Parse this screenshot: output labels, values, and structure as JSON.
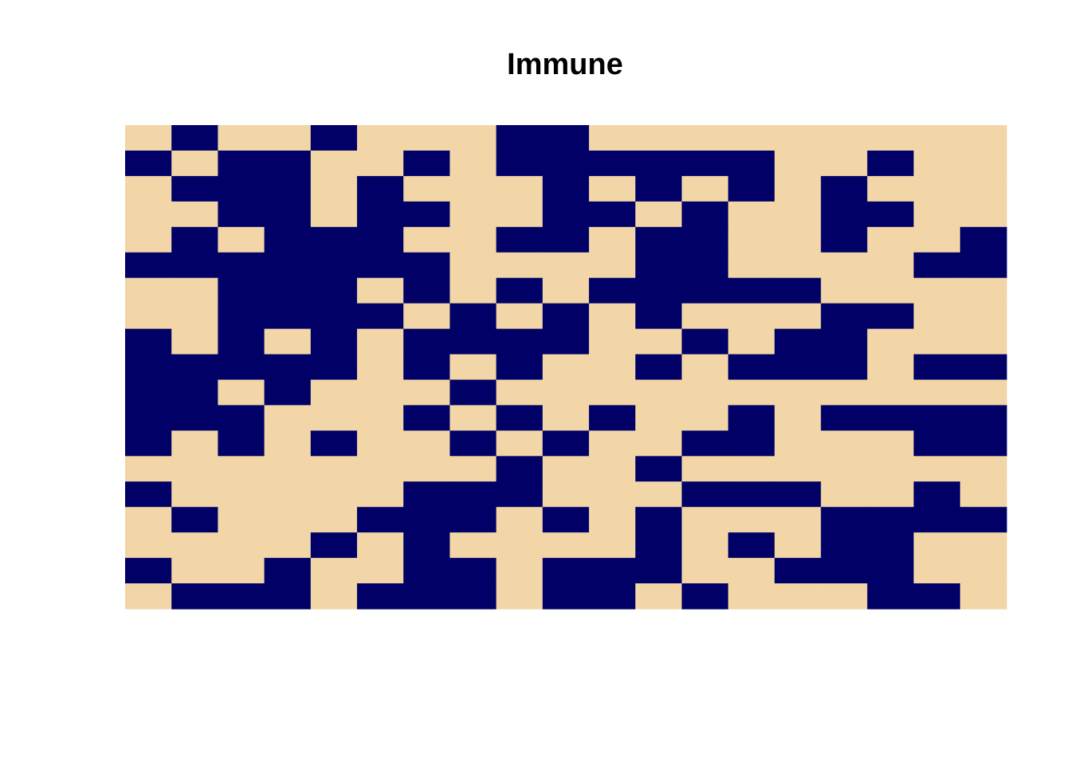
{
  "chart_data": {
    "type": "heatmap",
    "title": "Immune",
    "xlabel": "",
    "ylabel": "",
    "legend": "none",
    "grid": false,
    "n_cols": 19,
    "n_rows": 19,
    "colors": {
      "0": "#F2D6A7",
      "1": "#000066"
    },
    "values": [
      [
        0,
        1,
        0,
        0,
        1,
        0,
        0,
        0,
        1,
        1,
        0,
        0,
        0,
        0,
        0,
        0,
        0,
        0,
        0
      ],
      [
        1,
        0,
        1,
        1,
        0,
        0,
        1,
        0,
        1,
        1,
        1,
        1,
        1,
        1,
        0,
        0,
        1,
        0,
        0
      ],
      [
        0,
        1,
        1,
        1,
        0,
        1,
        0,
        0,
        0,
        1,
        0,
        1,
        0,
        1,
        0,
        1,
        0,
        0,
        0
      ],
      [
        0,
        0,
        1,
        1,
        0,
        1,
        1,
        0,
        0,
        1,
        1,
        0,
        1,
        0,
        0,
        1,
        1,
        0,
        0
      ],
      [
        0,
        1,
        0,
        1,
        1,
        1,
        0,
        0,
        1,
        1,
        0,
        1,
        1,
        0,
        0,
        1,
        0,
        0,
        1
      ],
      [
        1,
        1,
        1,
        1,
        1,
        1,
        1,
        0,
        0,
        0,
        0,
        1,
        1,
        0,
        0,
        0,
        0,
        1,
        1
      ],
      [
        0,
        0,
        1,
        1,
        1,
        0,
        1,
        0,
        1,
        0,
        1,
        1,
        1,
        1,
        1,
        0,
        0,
        0,
        0
      ],
      [
        0,
        0,
        1,
        1,
        1,
        1,
        0,
        1,
        0,
        1,
        0,
        1,
        0,
        0,
        0,
        1,
        1,
        0,
        0
      ],
      [
        1,
        0,
        1,
        0,
        1,
        0,
        1,
        1,
        1,
        1,
        0,
        0,
        1,
        0,
        1,
        1,
        0,
        0,
        0
      ],
      [
        1,
        1,
        1,
        1,
        1,
        0,
        1,
        0,
        1,
        0,
        0,
        1,
        0,
        1,
        1,
        1,
        0,
        1,
        1
      ],
      [
        1,
        1,
        0,
        1,
        0,
        0,
        0,
        1,
        0,
        0,
        0,
        0,
        0,
        0,
        0,
        0,
        0,
        0,
        0
      ],
      [
        1,
        1,
        1,
        0,
        0,
        0,
        1,
        0,
        1,
        0,
        1,
        0,
        0,
        1,
        0,
        1,
        1,
        1,
        1
      ],
      [
        1,
        0,
        1,
        0,
        1,
        0,
        0,
        1,
        0,
        1,
        0,
        0,
        1,
        1,
        0,
        0,
        0,
        1,
        1
      ],
      [
        0,
        0,
        0,
        0,
        0,
        0,
        0,
        0,
        1,
        0,
        0,
        1,
        0,
        0,
        0,
        0,
        0,
        0,
        0
      ],
      [
        1,
        0,
        0,
        0,
        0,
        0,
        1,
        1,
        1,
        0,
        0,
        0,
        1,
        1,
        1,
        0,
        0,
        1,
        0
      ],
      [
        0,
        1,
        0,
        0,
        0,
        1,
        1,
        1,
        0,
        1,
        0,
        1,
        0,
        0,
        0,
        1,
        1,
        1,
        1
      ],
      [
        0,
        0,
        0,
        0,
        1,
        0,
        1,
        0,
        0,
        0,
        0,
        1,
        0,
        1,
        0,
        1,
        1,
        0,
        0
      ],
      [
        1,
        0,
        0,
        1,
        0,
        0,
        1,
        1,
        0,
        1,
        1,
        1,
        0,
        0,
        1,
        1,
        1,
        0,
        0
      ],
      [
        0,
        1,
        1,
        1,
        0,
        1,
        1,
        1,
        0,
        1,
        1,
        0,
        1,
        0,
        0,
        0,
        1,
        1,
        0
      ]
    ]
  }
}
